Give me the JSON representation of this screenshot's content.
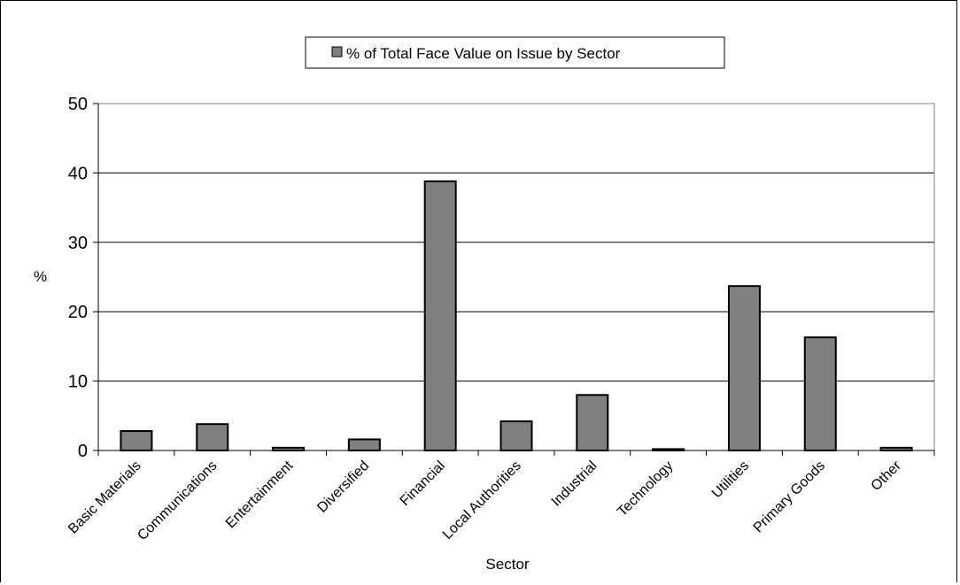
{
  "chart_data": {
    "type": "bar",
    "categories": [
      "Basic Materials",
      "Communications",
      "Entertainment",
      "Diversified",
      "Financial",
      "Local Authorities",
      "Industrial",
      "Technology",
      "Utilities",
      "Primary Goods",
      "Other"
    ],
    "series": [
      {
        "name": "% of Total Face Value on Issue by Sector",
        "values": [
          2.8,
          3.8,
          0.4,
          1.6,
          38.8,
          4.2,
          8.0,
          0.2,
          23.7,
          16.3,
          0.4
        ],
        "color": "#808080"
      }
    ],
    "xlabel": "Sector",
    "ylabel": "%",
    "ylim": [
      0,
      50
    ],
    "yticks": [
      "0",
      "10",
      "20",
      "30",
      "40",
      "50"
    ],
    "grid": true,
    "legend": "top-center"
  }
}
